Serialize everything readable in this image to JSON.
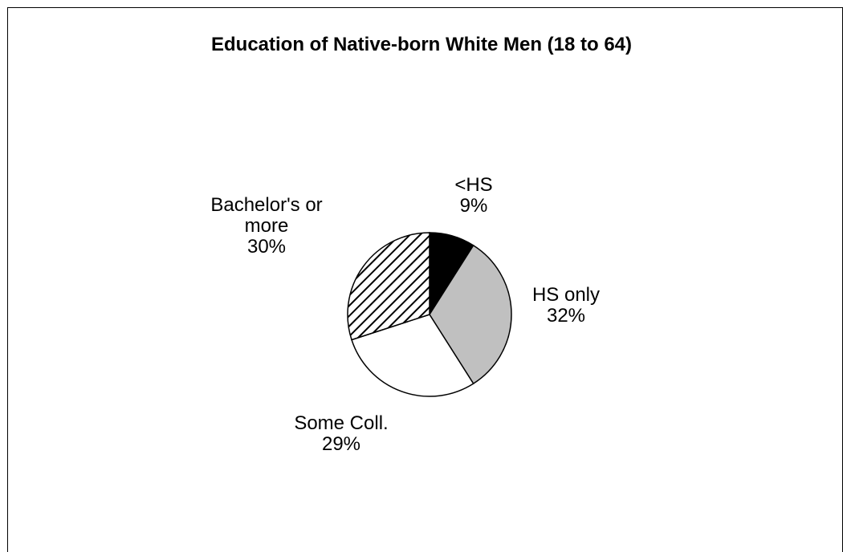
{
  "chart_data": {
    "type": "pie",
    "title": "Education of Native-born White Men (18 to 64)",
    "slices": [
      {
        "label_lines": [
          "<HS"
        ],
        "percent_label": "9%",
        "value": 9,
        "fill": "#000000",
        "pattern": "solid"
      },
      {
        "label_lines": [
          "HS only"
        ],
        "percent_label": "32%",
        "value": 32,
        "fill": "#c0c0c0",
        "pattern": "solid"
      },
      {
        "label_lines": [
          "Some Coll."
        ],
        "percent_label": "29%",
        "value": 29,
        "fill": "#ffffff",
        "pattern": "solid"
      },
      {
        "label_lines": [
          "Bachelor's or",
          "more"
        ],
        "percent_label": "30%",
        "value": 30,
        "fill": "#ffffff",
        "pattern": "diagonal-hatch"
      }
    ]
  }
}
